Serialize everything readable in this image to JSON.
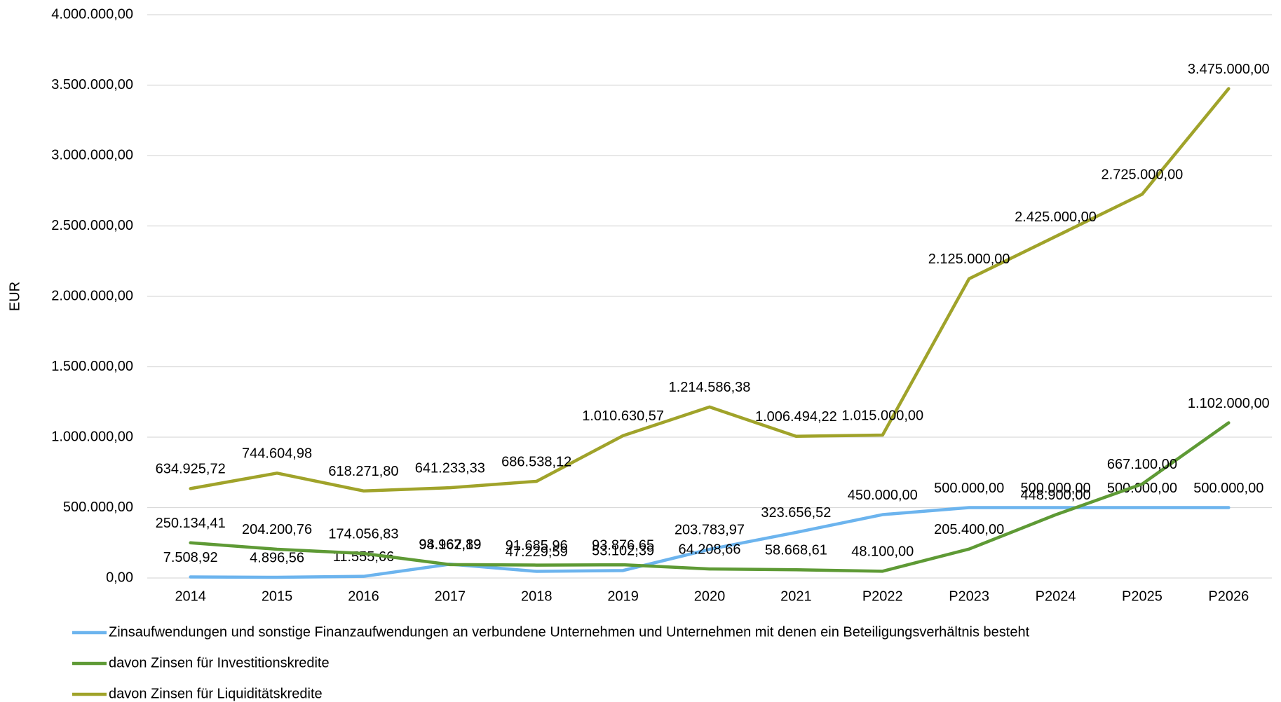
{
  "chart_data": {
    "type": "line",
    "ylabel": "EUR",
    "categories": [
      "2014",
      "2015",
      "2016",
      "2017",
      "2018",
      "2019",
      "2020",
      "2021",
      "P2022",
      "P2023",
      "P2024",
      "P2025",
      "P2026"
    ],
    "ylim": [
      0,
      4000000
    ],
    "yticks": [
      {
        "value": 0,
        "label": "0,00"
      },
      {
        "value": 500000,
        "label": "500.000,00"
      },
      {
        "value": 1000000,
        "label": "1.000.000,00"
      },
      {
        "value": 1500000,
        "label": "1.500.000,00"
      },
      {
        "value": 2000000,
        "label": "2.000.000,00"
      },
      {
        "value": 2500000,
        "label": "2.500.000,00"
      },
      {
        "value": 3000000,
        "label": "3.000.000,00"
      },
      {
        "value": 3500000,
        "label": "3.500.000,00"
      },
      {
        "value": 4000000,
        "label": "4.000.000,00"
      }
    ],
    "grid": true,
    "legend": "bottom",
    "series": [
      {
        "name": "Zinsaufwendungen und sonstige Finanzaufwendungen an verbundene Unternehmen und Unternehmen mit denen ein Beteiligungsverhältnis besteht",
        "color": "#6cb4ee",
        "values": [
          7508.92,
          4896.56,
          11555.66,
          98162.89,
          47229.59,
          53102.39,
          203783.97,
          323656.52,
          450000,
          500000,
          500000,
          500000,
          500000
        ],
        "value_labels": [
          "7.508,92",
          "4.896,56",
          "11.555,66",
          "98.162,89",
          "47.229,59",
          "53.102,39",
          "203.783,97",
          "323.656,52",
          "450.000,00",
          "500.000,00",
          "500.000,00",
          "500.000,00",
          "500.000,00"
        ]
      },
      {
        "name": "davon Zinsen für Investitionskredite",
        "color": "#5e9a35",
        "values": [
          250134.41,
          204200.76,
          174056.83,
          94967.19,
          91685.96,
          93876.65,
          64208.66,
          58668.61,
          48100,
          205400,
          448900,
          667100,
          1102000
        ],
        "value_labels": [
          "250.134,41",
          "204.200,76",
          "174.056,83",
          "94.967,19",
          "91.685,96",
          "93.876,65",
          "64.208,66",
          "58.668,61",
          "48.100,00",
          "205.400,00",
          "448.900,00",
          "667.100,00",
          "1.102.000,00"
        ]
      },
      {
        "name": "davon Zinsen für Liquiditätskredite",
        "color": "#a0a32a",
        "values": [
          634925.72,
          744604.98,
          618271.8,
          641233.33,
          686538.12,
          1010630.57,
          1214586.38,
          1006494.22,
          1015000,
          2125000,
          2425000,
          2725000,
          3475000
        ],
        "value_labels": [
          "634.925,72",
          "744.604,98",
          "618.271,80",
          "641.233,33",
          "686.538,12",
          "1.010.630,57",
          "1.214.586,38",
          "1.006.494,22",
          "1.015.000,00",
          "2.125.000,00",
          "2.425.000,00",
          "2.725.000,00",
          "3.475.000,00"
        ]
      }
    ]
  }
}
